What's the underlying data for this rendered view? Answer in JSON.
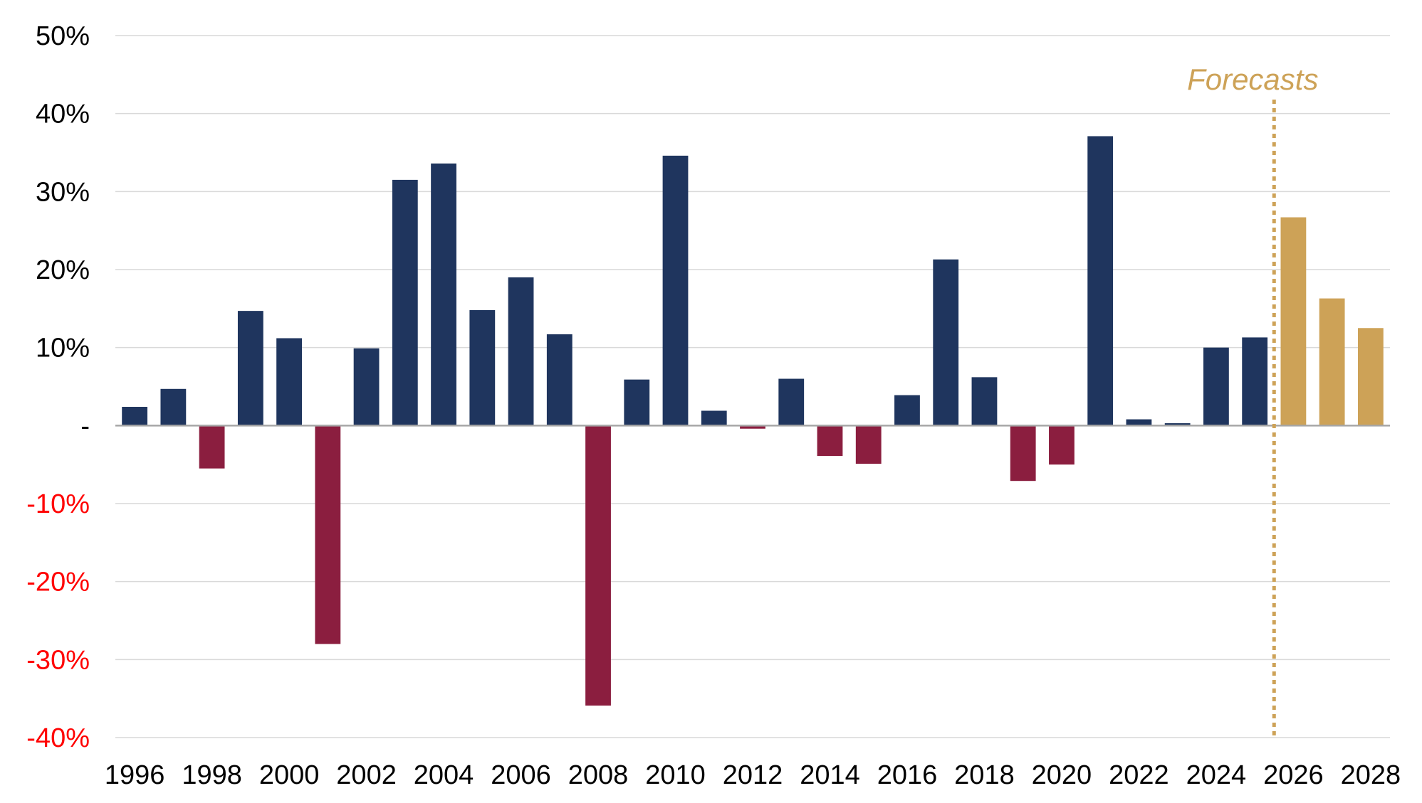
{
  "chart_data": {
    "type": "bar",
    "title": "",
    "xlabel": "",
    "ylabel": "",
    "ylim": [
      -40,
      50
    ],
    "yticks": [
      {
        "value": 50,
        "label": "50%"
      },
      {
        "value": 40,
        "label": "40%"
      },
      {
        "value": 30,
        "label": "30%"
      },
      {
        "value": 20,
        "label": "20%"
      },
      {
        "value": 10,
        "label": "10%"
      },
      {
        "value": 0,
        "label": "-"
      },
      {
        "value": -10,
        "label": "-10%"
      },
      {
        "value": -20,
        "label": "-20%"
      },
      {
        "value": -30,
        "label": "-30%"
      },
      {
        "value": -40,
        "label": "-40%"
      }
    ],
    "xtick_labels": [
      "1996",
      "1998",
      "2000",
      "2002",
      "2004",
      "2006",
      "2008",
      "2010",
      "2012",
      "2014",
      "2016",
      "2018",
      "2020",
      "2022",
      "2024",
      "2026",
      "2028"
    ],
    "grid": true,
    "categories": [
      "1996",
      "1997",
      "1998",
      "1999",
      "2000",
      "2001",
      "2002",
      "2003",
      "2004",
      "2005",
      "2006",
      "2007",
      "2008",
      "2009",
      "2010",
      "2011",
      "2012",
      "2013",
      "2014",
      "2015",
      "2016",
      "2017",
      "2018",
      "2019",
      "2020",
      "2021",
      "2022",
      "2023",
      "2024",
      "2025",
      "2026",
      "2027",
      "2028"
    ],
    "values": [
      2.4,
      4.7,
      -5.5,
      14.7,
      11.2,
      -28.0,
      9.9,
      31.5,
      33.6,
      14.8,
      19.0,
      11.7,
      -35.9,
      5.9,
      34.6,
      1.9,
      -0.4,
      6.0,
      -3.9,
      -4.9,
      3.9,
      21.3,
      6.2,
      -7.1,
      -5.0,
      37.1,
      0.8,
      0.3,
      10.0,
      11.3,
      26.7,
      16.3,
      12.5
    ],
    "forecast_from": "2026",
    "annotation": {
      "text": "Forecasts"
    },
    "colors": {
      "positive": "#1f355e",
      "negative": "#8b1e3f",
      "forecast": "#cda257",
      "grid": "#d9d9d9",
      "zero_line": "#a6a6a6",
      "positive_tick_text": "#000000",
      "negative_tick_text": "#ff0000"
    }
  }
}
